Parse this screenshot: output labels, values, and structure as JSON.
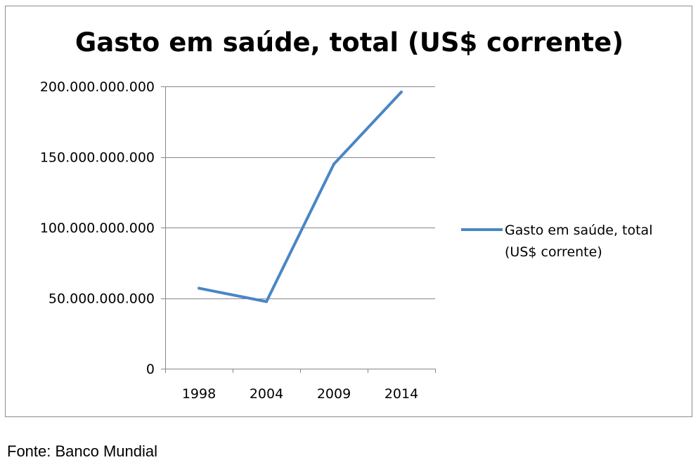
{
  "chart_data": {
    "type": "line",
    "title": "Gasto em saúde, total (US$ corrente)",
    "xlabel": "",
    "ylabel": "",
    "categories": [
      "1998",
      "2004",
      "2009",
      "2014"
    ],
    "series": [
      {
        "name": "Gasto em saúde, total (US$ corrente)",
        "values": [
          57000000000,
          47500000000,
          145000000000,
          196000000000
        ],
        "color": "#4a86c5"
      }
    ],
    "ylim": [
      0,
      200000000000
    ],
    "yticks": [
      0,
      50000000000,
      100000000000,
      150000000000,
      200000000000
    ],
    "ytick_labels": [
      "0",
      "50.000.000.000",
      "100.000.000.000",
      "150.000.000.000",
      "200.000.000.000"
    ],
    "legend": {
      "position": "right",
      "lines": [
        "Gasto em saúde, total",
        "(US$ corrente)"
      ]
    },
    "grid": "horizontal",
    "gridline_color": "#868686"
  },
  "source_note": "Fonte: Banco Mundial"
}
